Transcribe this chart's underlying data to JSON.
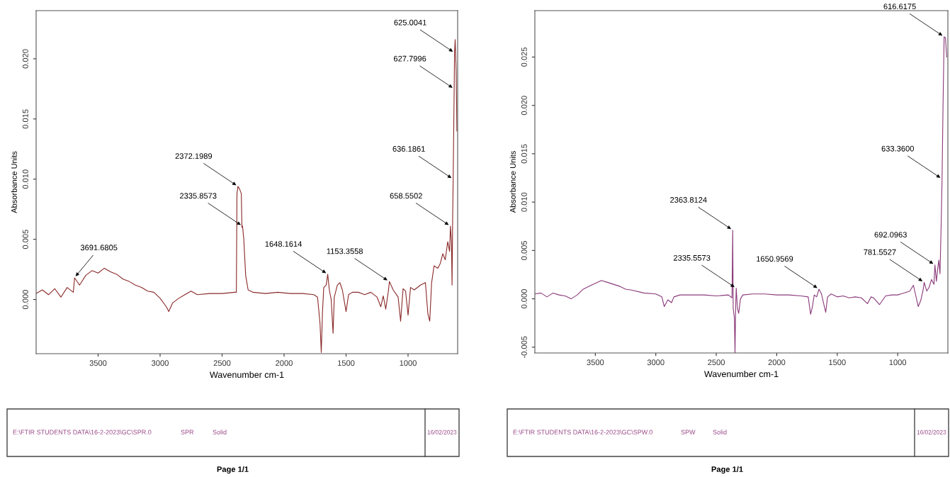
{
  "chart_data": [
    {
      "type": "line",
      "xlabel": "Wavenumber cm-1",
      "ylabel": "Absorbance Units",
      "xlim": [
        4000,
        600
      ],
      "ylim": [
        -0.0045,
        0.024
      ],
      "xticks": [
        3500,
        3000,
        2500,
        2000,
        1500,
        1000
      ],
      "yticks": [
        {
          "value": 0,
          "label": "0.000"
        },
        {
          "value": 0.005,
          "label": "0.005"
        },
        {
          "value": 0.01,
          "label": "0.010"
        },
        {
          "value": 0.015,
          "label": "0.015"
        },
        {
          "value": 0.02,
          "label": "0.020"
        }
      ],
      "series": [
        {
          "color": "#8b2a2a",
          "x": [
            4000,
            3950,
            3900,
            3850,
            3800,
            3750,
            3700,
            3690,
            3650,
            3600,
            3550,
            3500,
            3450,
            3400,
            3350,
            3300,
            3250,
            3200,
            3150,
            3100,
            3050,
            3000,
            2950,
            2930,
            2900,
            2850,
            2800,
            2750,
            2700,
            2600,
            2500,
            2400,
            2385,
            2380,
            2372,
            2360,
            2345,
            2340,
            2335,
            2325,
            2310,
            2290,
            2250,
            2150,
            2050,
            1950,
            1850,
            1760,
            1730,
            1710,
            1700,
            1690,
            1680,
            1660,
            1648,
            1635,
            1620,
            1605,
            1595,
            1570,
            1550,
            1530,
            1500,
            1480,
            1450,
            1400,
            1350,
            1300,
            1250,
            1220,
            1200,
            1180,
            1160,
            1150,
            1120,
            1080,
            1060,
            1040,
            1020,
            1000,
            980,
            950,
            900,
            860,
            840,
            825,
            810,
            790,
            760,
            740,
            720,
            700,
            680,
            665,
            658,
            650,
            645,
            640,
            636,
            628,
            625,
            620,
            612,
            606
          ],
          "values": [
            0.0005,
            0.0008,
            0.0004,
            0.0009,
            0.0002,
            0.001,
            0.0006,
            0.0018,
            0.0012,
            0.002,
            0.0024,
            0.0022,
            0.0026,
            0.0023,
            0.0021,
            0.0017,
            0.0015,
            0.0012,
            0.001,
            0.0007,
            0.0006,
            0.0001,
            -0.0006,
            -0.001,
            -0.0003,
            0.0001,
            0.0004,
            0.0007,
            0.0004,
            0.0005,
            0.0005,
            0.0006,
            0.0006,
            0.0088,
            0.0094,
            0.0092,
            0.0088,
            0.006,
            0.0061,
            0.005,
            0.002,
            0.0008,
            0.0006,
            0.0005,
            0.0006,
            0.0005,
            0.0005,
            0.0004,
            0.0002,
            -0.002,
            -0.0044,
            -0.001,
            0.001,
            0.0012,
            0.0021,
            0.0008,
            0.0,
            -0.0028,
            0.0002,
            0.0012,
            0.0014,
            0.0008,
            -0.001,
            0.0004,
            0.0006,
            0.0006,
            0.0004,
            0.0006,
            0.0002,
            -0.0006,
            0.0003,
            -0.0008,
            0.0006,
            0.0015,
            0.0008,
            0.0002,
            -0.0018,
            0.0009,
            0.0007,
            -0.0013,
            0.001,
            0.0008,
            0.0012,
            0.0014,
            -0.0012,
            -0.0018,
            0.0014,
            0.0028,
            0.0026,
            0.003,
            0.0038,
            0.0033,
            0.0048,
            0.004,
            0.0061,
            0.0048,
            0.0012,
            0.007,
            0.01,
            0.0175,
            0.0205,
            0.0216,
            0.019,
            0.014
          ]
        }
      ],
      "annotations": [
        {
          "text": "625.0041",
          "x": 625.0041,
          "y": 0.0205
        },
        {
          "text": "627.7996",
          "x": 627.7996,
          "y": 0.0175
        },
        {
          "text": "636.1861",
          "x": 636.1861,
          "y": 0.01
        },
        {
          "text": "658.5502",
          "x": 658.5502,
          "y": 0.0061
        },
        {
          "text": "2372.1989",
          "x": 2372.1989,
          "y": 0.0094
        },
        {
          "text": "2335.8573",
          "x": 2335.8573,
          "y": 0.0061
        },
        {
          "text": "1648.1614",
          "x": 1648.1614,
          "y": 0.0021
        },
        {
          "text": "1153.3558",
          "x": 1153.3558,
          "y": 0.0015
        },
        {
          "text": "3691.6805",
          "x": 3691.6805,
          "y": 0.0018
        },
        "E:\\FTIR STUDENTS DATA\\16-2-2023\\GC\\SPR.0",
        "SPR",
        "Solid",
        "16/02/2023",
        "Page 1/1"
      ]
    },
    {
      "type": "line",
      "xlabel": "Wavenumber cm-1",
      "ylabel": "Absorbance Units",
      "xlim": [
        4000,
        585
      ],
      "ylim": [
        -0.0056,
        0.0298
      ],
      "xticks": [
        3500,
        3000,
        2500,
        2000,
        1500,
        1000
      ],
      "yticks": [
        {
          "value": -0.005,
          "label": "-0.005"
        },
        {
          "value": 0,
          "label": "0.000"
        },
        {
          "value": 0.005,
          "label": "0.005"
        },
        {
          "value": 0.01,
          "label": "0.010"
        },
        {
          "value": 0.015,
          "label": "0.015"
        },
        {
          "value": 0.02,
          "label": "0.020"
        },
        {
          "value": 0.025,
          "label": "0.025"
        }
      ],
      "series": [
        {
          "color": "#8a3a7a",
          "x": [
            4000,
            3950,
            3900,
            3850,
            3800,
            3750,
            3700,
            3650,
            3600,
            3550,
            3500,
            3450,
            3400,
            3350,
            3300,
            3250,
            3200,
            3100,
            3000,
            2950,
            2930,
            2900,
            2870,
            2850,
            2800,
            2700,
            2600,
            2500,
            2400,
            2370,
            2364,
            2360,
            2350,
            2345,
            2340,
            2335,
            2325,
            2315,
            2300,
            2280,
            2200,
            2100,
            2000,
            1900,
            1800,
            1740,
            1720,
            1705,
            1690,
            1670,
            1651,
            1630,
            1610,
            1595,
            1580,
            1550,
            1500,
            1450,
            1400,
            1350,
            1300,
            1250,
            1220,
            1200,
            1150,
            1100,
            1050,
            1000,
            950,
            900,
            870,
            850,
            830,
            810,
            790,
            781,
            760,
            740,
            720,
            700,
            692,
            680,
            670,
            660,
            650,
            640,
            633,
            625,
            616,
            605,
            595
          ],
          "values": [
            0.0005,
            0.0006,
            0.0002,
            0.0006,
            0.0004,
            0.0003,
            0.0,
            0.0004,
            0.001,
            0.0013,
            0.0016,
            0.0019,
            0.0017,
            0.0015,
            0.0013,
            0.001,
            0.0009,
            0.0006,
            0.0005,
            0.0002,
            -0.0008,
            -0.0001,
            -0.0004,
            0.0002,
            0.0004,
            0.0004,
            0.0004,
            0.0003,
            0.0004,
            0.0001,
            0.0071,
            -0.001,
            -0.002,
            -0.0056,
            -0.001,
            0.0011,
            -0.001,
            -0.0015,
            0.0,
            0.0004,
            0.0005,
            0.0005,
            0.0004,
            0.0004,
            0.0003,
            0.0002,
            -0.0016,
            -0.0008,
            0.0004,
            0.0002,
            0.001,
            0.0005,
            -0.0006,
            -0.0014,
            0.0002,
            0.0005,
            0.0002,
            0.0003,
            0.0001,
            0.0002,
            0.0001,
            -0.0005,
            0.0002,
            0.0001,
            -0.0006,
            0.0003,
            0.0004,
            0.0004,
            0.0006,
            0.0008,
            0.0014,
            0.0003,
            -0.0008,
            -0.0002,
            0.0009,
            0.0017,
            0.0008,
            0.0012,
            0.002,
            0.0015,
            0.0035,
            0.0018,
            0.003,
            0.004,
            0.0026,
            0.008,
            0.0124,
            0.02,
            0.0271,
            0.027,
            0.025
          ]
        }
      ],
      "annotations": [
        {
          "text": "616.6175",
          "x": 616.6175,
          "y": 0.0271
        },
        {
          "text": "633.3600",
          "x": 633.36,
          "y": 0.0124
        },
        {
          "text": "692.0963",
          "x": 692.0963,
          "y": 0.0035
        },
        {
          "text": "781.5527",
          "x": 781.5527,
          "y": 0.0017
        },
        {
          "text": "2363.8124",
          "x": 2363.8124,
          "y": 0.0071
        },
        {
          "text": "2335.5573",
          "x": 2335.5573,
          "y": 0.0011
        },
        {
          "text": "1650.9569",
          "x": 1650.9569,
          "y": 0.001
        },
        "E:\\FTIR STUDENTS DATA\\16-2-2023\\GC\\SPW.0",
        "SPW",
        "Solid",
        "16/02/2023",
        "Page 1/1"
      ]
    }
  ]
}
